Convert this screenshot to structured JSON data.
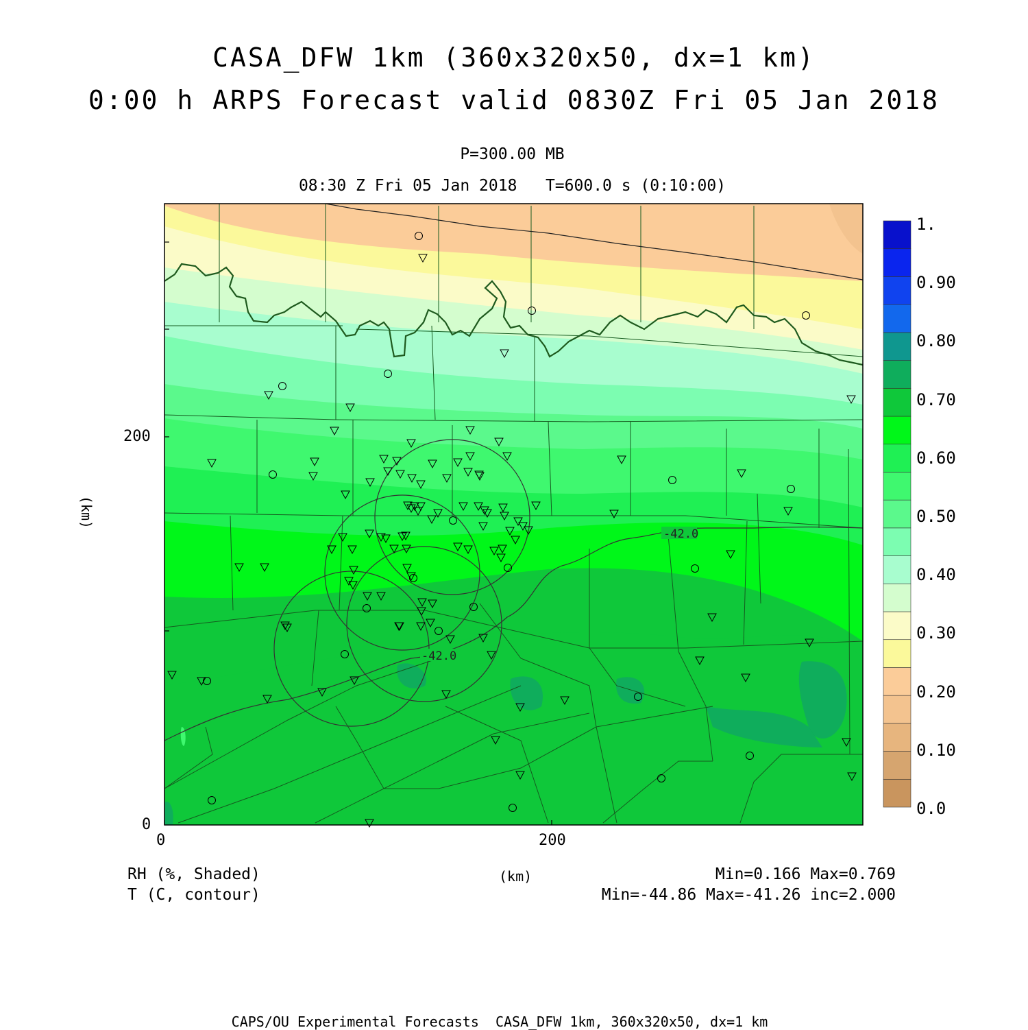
{
  "titles": {
    "line1": "CASA_DFW 1km (360x320x50, dx=1 km)",
    "line2": "0:00 h ARPS Forecast valid 0830Z Fri 05 Jan 2018",
    "level": "P=300.00 MB",
    "time": "08:30 Z Fri 05 Jan 2018   T=600.0 s (0:10:00)"
  },
  "axes": {
    "x_ticks": [
      "0",
      "200"
    ],
    "y_ticks": [
      "0",
      "200"
    ],
    "x_label": "(km)",
    "y_label": "(km)"
  },
  "legend_left": {
    "shaded": "RH (%, Shaded)",
    "contour": "T (C, contour)"
  },
  "legend_right": {
    "shaded_stats": "Min=0.166 Max=0.769",
    "contour_stats": "Min=-44.86 Max=-41.26 inc=2.000"
  },
  "contour_labels": [
    "-42.0",
    "-42.0"
  ],
  "colorbar": {
    "labels": [
      "1.",
      "0.90",
      "0.80",
      "0.70",
      "0.60",
      "0.50",
      "0.40",
      "0.30",
      "0.20",
      "0.10",
      "0.0"
    ],
    "colors": [
      "#c9955e",
      "#d6a56f",
      "#e7b57e",
      "#f3c38f",
      "#fbcc99",
      "#fbf99b",
      "#fbfbc8",
      "#d4fdce",
      "#a8fdcf",
      "#7cfdb1",
      "#5bf98c",
      "#3ff86f",
      "#1ff054",
      "#00f719",
      "#0fc83a",
      "#0fad5c",
      "#0f978f",
      "#1268ed",
      "#1043ef",
      "#0a25ee",
      "#0811cc"
    ]
  },
  "footer": "CAPS/OU Experimental Forecasts  CASA_DFW 1km, 360x320x50, dx=1 km"
}
